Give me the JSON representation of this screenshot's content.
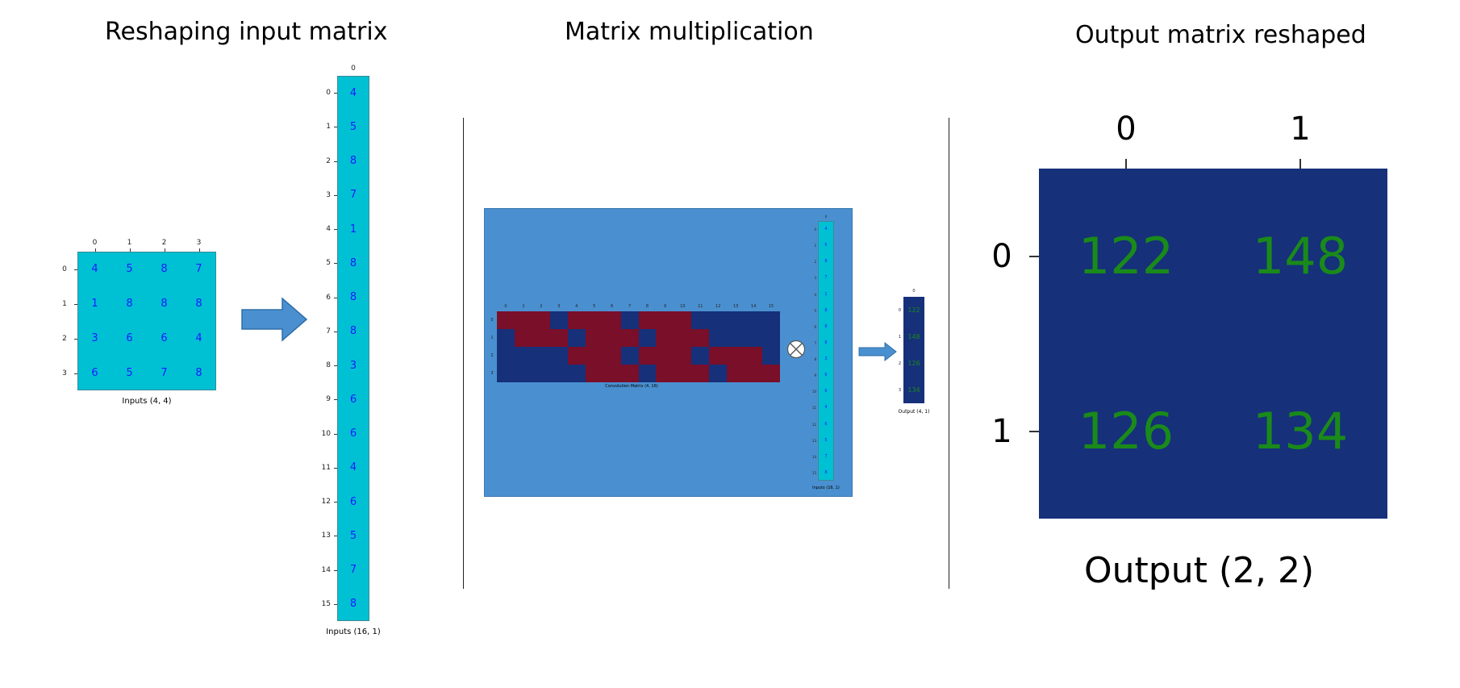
{
  "section1": {
    "title": "Reshaping input matrix",
    "small_matrix": {
      "col_ticks": [
        "0",
        "1",
        "2",
        "3"
      ],
      "row_ticks": [
        "0",
        "1",
        "2",
        "3"
      ],
      "rows": [
        [
          "4",
          "5",
          "8",
          "7"
        ],
        [
          "1",
          "8",
          "8",
          "8"
        ],
        [
          "3",
          "6",
          "6",
          "4"
        ],
        [
          "6",
          "5",
          "7",
          "8"
        ]
      ],
      "caption": "Inputs (4, 4)"
    },
    "column_vector": {
      "col_tick": "0",
      "row_ticks": [
        "0",
        "1",
        "2",
        "3",
        "4",
        "5",
        "6",
        "7",
        "8",
        "9",
        "10",
        "11",
        "12",
        "13",
        "14",
        "15"
      ],
      "values": [
        "4",
        "5",
        "8",
        "7",
        "1",
        "8",
        "8",
        "8",
        "3",
        "6",
        "6",
        "4",
        "6",
        "5",
        "7",
        "8"
      ],
      "caption": "Inputs (16, 1)"
    }
  },
  "section2": {
    "title": "Matrix multiplication",
    "conv_matrix": {
      "col_ticks": [
        "0",
        "1",
        "2",
        "3",
        "4",
        "5",
        "6",
        "7",
        "8",
        "9",
        "10",
        "11",
        "12",
        "13",
        "14",
        "15"
      ],
      "row_ticks": [
        "0",
        "1",
        "2",
        "3"
      ],
      "pattern": [
        [
          1,
          1,
          1,
          0,
          1,
          1,
          1,
          0,
          1,
          1,
          1,
          0,
          0,
          0,
          0,
          0
        ],
        [
          0,
          1,
          1,
          1,
          0,
          1,
          1,
          1,
          0,
          1,
          1,
          1,
          0,
          0,
          0,
          0
        ],
        [
          0,
          0,
          0,
          0,
          1,
          1,
          1,
          0,
          1,
          1,
          1,
          0,
          1,
          1,
          1,
          0
        ],
        [
          0,
          0,
          0,
          0,
          0,
          1,
          1,
          1,
          0,
          1,
          1,
          1,
          0,
          1,
          1,
          1
        ]
      ],
      "caption": "Convolution Matrix (4, 16)"
    },
    "inner_vector": {
      "col_tick": "0",
      "row_ticks": [
        "0",
        "1",
        "2",
        "3",
        "4",
        "5",
        "6",
        "7",
        "8",
        "9",
        "10",
        "11",
        "12",
        "13",
        "14",
        "15"
      ],
      "values": [
        "4",
        "5",
        "8",
        "7",
        "1",
        "8",
        "8",
        "8",
        "3",
        "6",
        "6",
        "4",
        "6",
        "5",
        "7",
        "8"
      ],
      "caption": "Inputs (16, 1)"
    },
    "output_vector": {
      "col_tick": "0",
      "row_ticks": [
        "0",
        "1",
        "2",
        "3"
      ],
      "values": [
        "122",
        "148",
        "126",
        "134"
      ],
      "caption": "Output (4, 1)"
    },
    "operator_symbol": "⊗"
  },
  "section3": {
    "title": "Output matrix reshaped",
    "col_ticks": [
      "0",
      "1"
    ],
    "row_ticks": [
      "0",
      "1"
    ],
    "rows": [
      [
        "122",
        "148"
      ],
      [
        "126",
        "134"
      ]
    ],
    "caption": "Output (2, 2)"
  },
  "colors": {
    "cyan": "#00c0d4",
    "navy": "#16307a",
    "darkred": "#7a0f2a",
    "arrow_blue": "#4a90d0",
    "panel_blue": "#4a90d0",
    "green_text": "#1a8a1a",
    "blue_text": "#1a1aff"
  }
}
